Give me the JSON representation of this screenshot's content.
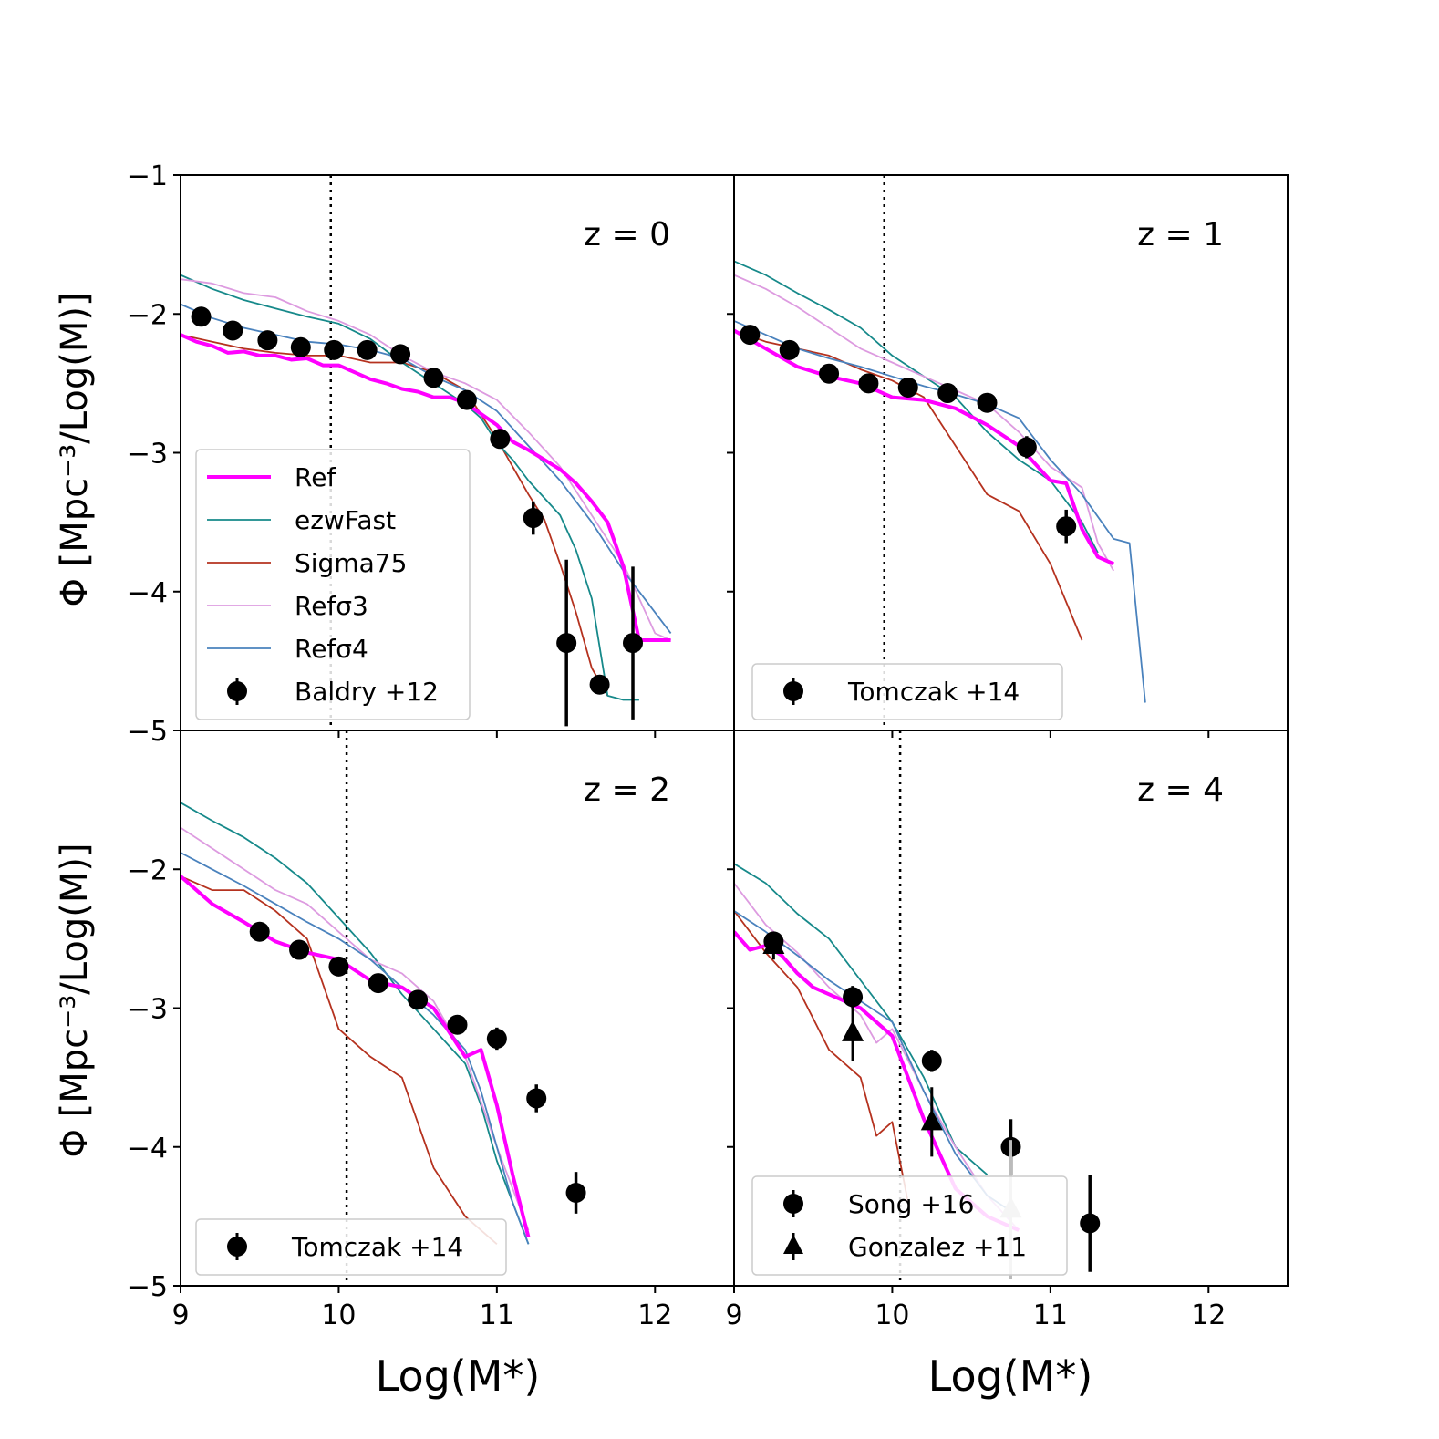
{
  "chart_data": {
    "type": "line",
    "xlabel": "Log(M*)",
    "ylabel": "Φ [Mpc⁻³/Log(M)]",
    "xlim": [
      9,
      12.5
    ],
    "ylim": [
      -5,
      -1
    ],
    "x_ticks": [
      "9",
      "10",
      "11",
      "12"
    ],
    "y_ticks": [
      "−5",
      "−4",
      "−3",
      "−2",
      "−1"
    ],
    "colors": {
      "Ref": "#ff00ff",
      "ezwFast": "#16898a",
      "Sigma75": "#b5321f",
      "Refσ3": "#dd9be0",
      "Refσ4": "#4a82bd"
    },
    "panels": [
      {
        "label": "z = 0",
        "cut": 9.95,
        "legend_loc": "lower-left",
        "legend": [
          "Ref",
          "ezwFast",
          "Sigma75",
          "Refσ3",
          "Refσ4",
          "Baldry +12"
        ],
        "series": [
          {
            "name": "Ref",
            "x": [
              9,
              9.1,
              9.2,
              9.3,
              9.4,
              9.5,
              9.6,
              9.7,
              9.8,
              9.9,
              10,
              10.1,
              10.2,
              10.3,
              10.4,
              10.5,
              10.6,
              10.7,
              10.8,
              10.9,
              11,
              11.1,
              11.2,
              11.3,
              11.4,
              11.5,
              11.6,
              11.7,
              11.8,
              11.9,
              12,
              12.1
            ],
            "y": [
              -2.15,
              -2.2,
              -2.23,
              -2.28,
              -2.27,
              -2.3,
              -2.3,
              -2.33,
              -2.32,
              -2.37,
              -2.37,
              -2.42,
              -2.47,
              -2.5,
              -2.54,
              -2.56,
              -2.6,
              -2.6,
              -2.64,
              -2.72,
              -2.8,
              -2.92,
              -2.98,
              -3.05,
              -3.12,
              -3.22,
              -3.35,
              -3.5,
              -3.82,
              -4.35,
              -4.35,
              -4.35
            ]
          },
          {
            "name": "ezwFast",
            "x": [
              9,
              9.2,
              9.4,
              9.6,
              9.8,
              10,
              10.2,
              10.4,
              10.6,
              10.8,
              10.9,
              11,
              11.1,
              11.2,
              11.4,
              11.5,
              11.6,
              11.7,
              11.8,
              11.9
            ],
            "y": [
              -1.72,
              -1.82,
              -1.9,
              -1.96,
              -2.02,
              -2.07,
              -2.18,
              -2.35,
              -2.5,
              -2.65,
              -2.75,
              -2.93,
              -3.05,
              -3.2,
              -3.45,
              -3.7,
              -4.05,
              -4.75,
              -4.78,
              -4.78
            ]
          },
          {
            "name": "Sigma75",
            "x": [
              9,
              9.2,
              9.4,
              9.6,
              9.8,
              10,
              10.2,
              10.4,
              10.6,
              10.8,
              11,
              11.2,
              11.3,
              11.4,
              11.5,
              11.6,
              11.7
            ],
            "y": [
              -2.15,
              -2.2,
              -2.25,
              -2.28,
              -2.3,
              -2.3,
              -2.35,
              -2.35,
              -2.42,
              -2.55,
              -2.9,
              -3.3,
              -3.48,
              -3.8,
              -4.15,
              -4.55,
              -4.75
            ]
          },
          {
            "name": "Refσ3",
            "x": [
              9,
              9.2,
              9.4,
              9.6,
              9.8,
              10,
              10.2,
              10.4,
              10.6,
              10.8,
              11,
              11.2,
              11.4,
              11.6,
              11.8,
              12,
              12.1
            ],
            "y": [
              -1.75,
              -1.78,
              -1.85,
              -1.88,
              -1.98,
              -2.05,
              -2.15,
              -2.3,
              -2.42,
              -2.5,
              -2.62,
              -2.85,
              -3.1,
              -3.45,
              -3.8,
              -4.3,
              -4.35
            ]
          },
          {
            "name": "Refσ4",
            "x": [
              9,
              9.2,
              9.4,
              9.6,
              9.8,
              10,
              10.2,
              10.4,
              10.6,
              10.8,
              11,
              11.2,
              11.4,
              11.6,
              11.8,
              12,
              12.1
            ],
            "y": [
              -1.93,
              -2.03,
              -2.1,
              -2.15,
              -2.2,
              -2.22,
              -2.26,
              -2.32,
              -2.45,
              -2.55,
              -2.7,
              -2.95,
              -3.2,
              -3.5,
              -3.85,
              -4.15,
              -4.3
            ]
          }
        ],
        "points": {
          "name": "Baldry +12",
          "marker": "circle",
          "x": [
            9.13,
            9.33,
            9.55,
            9.76,
            9.97,
            10.18,
            10.39,
            10.6,
            10.81,
            11.02,
            11.23,
            11.44,
            11.65,
            11.86
          ],
          "y": [
            -2.02,
            -2.12,
            -2.19,
            -2.24,
            -2.26,
            -2.26,
            -2.29,
            -2.46,
            -2.62,
            -2.9,
            -3.47,
            -4.37,
            -4.67,
            -4.37
          ],
          "err": [
            0.03,
            0.03,
            0.03,
            0.03,
            0.03,
            0.03,
            0.03,
            0.03,
            0.04,
            0.06,
            0.12,
            0.6,
            0.06,
            0.55
          ]
        }
      },
      {
        "label": "z = 1",
        "cut": 9.95,
        "legend_loc": "lower-center",
        "legend": [
          "Tomczak +14"
        ],
        "series": [
          {
            "name": "Ref",
            "x": [
              9,
              9.2,
              9.4,
              9.6,
              9.8,
              10,
              10.2,
              10.4,
              10.6,
              10.8,
              11,
              11.1,
              11.2,
              11.3,
              11.4
            ],
            "y": [
              -2.12,
              -2.25,
              -2.38,
              -2.45,
              -2.5,
              -2.6,
              -2.62,
              -2.68,
              -2.8,
              -2.95,
              -3.2,
              -3.22,
              -3.55,
              -3.75,
              -3.8
            ]
          },
          {
            "name": "ezwFast",
            "x": [
              9,
              9.2,
              9.4,
              9.6,
              9.8,
              10,
              10.2,
              10.4,
              10.6,
              10.8,
              11,
              11.2,
              11.3
            ],
            "y": [
              -1.62,
              -1.72,
              -1.85,
              -1.97,
              -2.1,
              -2.3,
              -2.45,
              -2.6,
              -2.85,
              -3.05,
              -3.2,
              -3.5,
              -3.72
            ]
          },
          {
            "name": "Sigma75",
            "x": [
              9,
              9.2,
              9.4,
              9.6,
              9.8,
              10,
              10.2,
              10.4,
              10.6,
              10.8,
              11,
              11.2
            ],
            "y": [
              -2.12,
              -2.2,
              -2.25,
              -2.3,
              -2.4,
              -2.48,
              -2.6,
              -2.95,
              -3.3,
              -3.42,
              -3.8,
              -4.35
            ]
          },
          {
            "name": "Refσ3",
            "x": [
              9,
              9.2,
              9.4,
              9.6,
              9.8,
              10,
              10.2,
              10.4,
              10.6,
              10.8,
              11,
              11.2,
              11.3,
              11.4
            ],
            "y": [
              -1.72,
              -1.82,
              -1.95,
              -2.1,
              -2.25,
              -2.35,
              -2.45,
              -2.55,
              -2.65,
              -2.85,
              -3.1,
              -3.25,
              -3.65,
              -3.85
            ]
          },
          {
            "name": "Refσ4",
            "x": [
              9,
              9.2,
              9.4,
              9.6,
              9.8,
              10,
              10.2,
              10.4,
              10.6,
              10.8,
              11,
              11.2,
              11.4,
              11.5,
              11.6
            ],
            "y": [
              -2.05,
              -2.15,
              -2.25,
              -2.32,
              -2.38,
              -2.45,
              -2.52,
              -2.58,
              -2.65,
              -2.75,
              -3.05,
              -3.3,
              -3.62,
              -3.65,
              -4.8
            ]
          }
        ],
        "points": {
          "name": "Tomczak +14",
          "marker": "circle",
          "x": [
            9.1,
            9.35,
            9.6,
            9.85,
            10.1,
            10.35,
            10.6,
            10.85,
            11.1
          ],
          "y": [
            -2.15,
            -2.26,
            -2.43,
            -2.5,
            -2.53,
            -2.57,
            -2.64,
            -2.96,
            -3.53
          ],
          "err": [
            0.03,
            0.03,
            0.03,
            0.03,
            0.03,
            0.04,
            0.05,
            0.08,
            0.12
          ]
        }
      },
      {
        "label": "z = 2",
        "cut": 10.05,
        "legend_loc": "lower-left",
        "legend": [
          "Tomczak +14"
        ],
        "series": [
          {
            "name": "Ref",
            "x": [
              9,
              9.2,
              9.4,
              9.6,
              9.8,
              10,
              10.2,
              10.4,
              10.6,
              10.8,
              10.9,
              11,
              11.1,
              11.2
            ],
            "y": [
              -2.05,
              -2.25,
              -2.38,
              -2.52,
              -2.6,
              -2.65,
              -2.8,
              -2.85,
              -3.0,
              -3.35,
              -3.3,
              -3.7,
              -4.2,
              -4.65
            ]
          },
          {
            "name": "ezwFast",
            "x": [
              9,
              9.2,
              9.4,
              9.6,
              9.8,
              10,
              10.2,
              10.4,
              10.6,
              10.8,
              10.9,
              11,
              11.1,
              11.2
            ],
            "y": [
              -1.52,
              -1.65,
              -1.77,
              -1.92,
              -2.1,
              -2.35,
              -2.6,
              -2.9,
              -3.15,
              -3.4,
              -3.7,
              -4.1,
              -4.4,
              -4.7
            ]
          },
          {
            "name": "Sigma75",
            "x": [
              9,
              9.2,
              9.4,
              9.6,
              9.8,
              10,
              10.2,
              10.4,
              10.6,
              10.8,
              11
            ],
            "y": [
              -2.05,
              -2.15,
              -2.15,
              -2.3,
              -2.5,
              -3.15,
              -3.35,
              -3.5,
              -4.15,
              -4.5,
              -4.7
            ]
          },
          {
            "name": "Refσ3",
            "x": [
              9,
              9.2,
              9.4,
              9.6,
              9.8,
              10,
              10.2,
              10.4,
              10.6,
              10.8,
              11,
              11.2
            ],
            "y": [
              -1.7,
              -1.85,
              -2.0,
              -2.15,
              -2.25,
              -2.45,
              -2.65,
              -2.75,
              -2.95,
              -3.35,
              -4.0,
              -4.6
            ]
          },
          {
            "name": "Refσ4",
            "x": [
              9,
              9.2,
              9.4,
              9.6,
              9.8,
              10,
              10.2,
              10.4,
              10.6,
              10.8,
              10.9,
              11,
              11.1,
              11.2
            ],
            "y": [
              -1.88,
              -2.0,
              -2.12,
              -2.25,
              -2.38,
              -2.5,
              -2.65,
              -2.85,
              -3.05,
              -3.3,
              -3.6,
              -4.0,
              -4.4,
              -4.7
            ]
          }
        ],
        "points": {
          "name": "Tomczak +14",
          "marker": "circle",
          "x": [
            9.5,
            9.75,
            10.0,
            10.25,
            10.5,
            10.75,
            11.0,
            11.25,
            11.5
          ],
          "y": [
            -2.45,
            -2.58,
            -2.7,
            -2.82,
            -2.94,
            -3.12,
            -3.22,
            -3.65,
            -4.33
          ],
          "err": [
            0.03,
            0.03,
            0.04,
            0.04,
            0.05,
            0.06,
            0.08,
            0.1,
            0.15
          ]
        }
      },
      {
        "label": "z = 4",
        "cut": 10.05,
        "legend_loc": "lower-center",
        "legend": [
          "Song +16",
          "Gonzalez +11"
        ],
        "series": [
          {
            "name": "Ref",
            "x": [
              9,
              9.1,
              9.2,
              9.3,
              9.4,
              9.5,
              9.6,
              9.8,
              10,
              10.2,
              10.4,
              10.6,
              10.8
            ],
            "y": [
              -2.45,
              -2.58,
              -2.55,
              -2.62,
              -2.75,
              -2.85,
              -2.9,
              -3.0,
              -3.2,
              -3.8,
              -4.3,
              -4.5,
              -4.6
            ]
          },
          {
            "name": "ezwFast",
            "x": [
              9,
              9.2,
              9.4,
              9.6,
              9.8,
              10,
              10.2,
              10.4,
              10.6
            ],
            "y": [
              -1.96,
              -2.1,
              -2.32,
              -2.5,
              -2.8,
              -3.1,
              -3.5,
              -4.0,
              -4.2
            ]
          },
          {
            "name": "Sigma75",
            "x": [
              9,
              9.2,
              9.4,
              9.6,
              9.8,
              9.9,
              10,
              10.1
            ],
            "y": [
              -2.3,
              -2.6,
              -2.85,
              -3.3,
              -3.5,
              -3.92,
              -3.82,
              -4.4
            ]
          },
          {
            "name": "Refσ3",
            "x": [
              9,
              9.2,
              9.4,
              9.6,
              9.8,
              9.9,
              10,
              10.2,
              10.4,
              10.6,
              10.8
            ],
            "y": [
              -2.1,
              -2.4,
              -2.6,
              -2.85,
              -3.05,
              -3.25,
              -3.15,
              -3.6,
              -4.0,
              -4.35,
              -4.6
            ]
          },
          {
            "name": "Refσ4",
            "x": [
              9,
              9.2,
              9.4,
              9.6,
              9.8,
              10,
              10.2,
              10.4,
              10.6,
              10.8
            ],
            "y": [
              -2.3,
              -2.45,
              -2.62,
              -2.8,
              -2.95,
              -3.1,
              -3.6,
              -4.05,
              -4.35,
              -4.5
            ]
          }
        ],
        "points": {
          "name": "Song +16",
          "marker": "circle",
          "x": [
            9.25,
            9.75,
            10.25,
            10.75,
            11.25
          ],
          "y": [
            -2.52,
            -2.92,
            -3.38,
            -4.0,
            -4.55
          ],
          "err": [
            0.05,
            0.08,
            0.08,
            0.2,
            0.35
          ]
        },
        "triangles": {
          "name": "Gonzalez +11",
          "marker": "triangle",
          "x": [
            9.25,
            9.75,
            10.25,
            10.75
          ],
          "y": [
            -2.55,
            -3.18,
            -3.82,
            -4.45
          ],
          "err": [
            0.1,
            0.2,
            0.25,
            0.5
          ],
          "colors": [
            "#000000",
            "#000000",
            "#000000",
            "#bbbbbb"
          ]
        }
      }
    ]
  }
}
